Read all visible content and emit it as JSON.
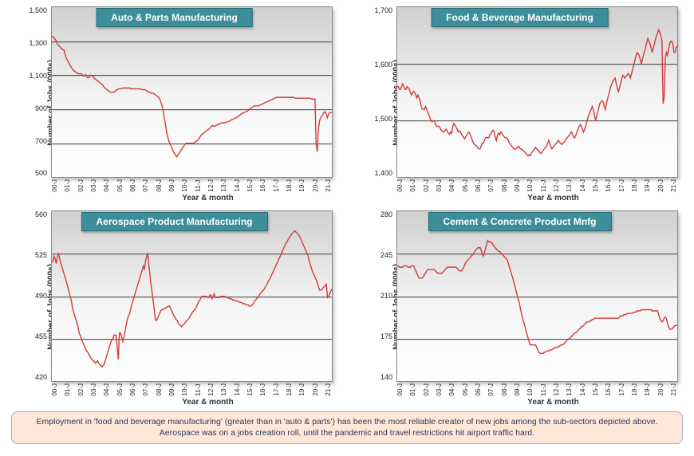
{
  "layout": {
    "rows": 2,
    "cols": 2
  },
  "common": {
    "ylabel": "Number of Jobs (000s)",
    "xlabel": "Year & month",
    "xticks": [
      "00-J",
      "01-J",
      "02-J",
      "03-J",
      "04-J",
      "05-J",
      "06-J",
      "07-J",
      "08-J",
      "09-J",
      "10-J",
      "11-J",
      "12-J",
      "13-J",
      "14-J",
      "15-J",
      "16-J",
      "17-J",
      "18-J",
      "19-J",
      "20-J",
      "21-J"
    ],
    "line_color": "#d43a3a",
    "line_width": 1.4,
    "grid_color": "#555555",
    "plot_bg_top": "#d0d0d0",
    "plot_bg_bottom": "#ffffff",
    "title_bg": "#3c8e9b",
    "title_fg": "#ffffff",
    "title_fontsize": 12,
    "axis_label_fontsize": 10,
    "tick_fontsize": 9
  },
  "caption": "Employment in 'food and beverage manufacturing' (greater than in 'auto & parts') has been the most reliable creator of new jobs among the sub-sectors depicted above. Aerospace was on a jobs creation roll, until the pandemic and travel restrictions hit airport traffic hard.",
  "caption_bg": "#ffe7d9",
  "charts": [
    {
      "title": "Auto & Parts Manufacturing",
      "ylim": [
        500,
        1500
      ],
      "ytick_step": 200,
      "yticks": [
        "1,500",
        "1,300",
        "1,100",
        "900",
        "700",
        "500"
      ],
      "series": [
        1330,
        1325,
        1320,
        1310,
        1300,
        1280,
        1275,
        1270,
        1260,
        1255,
        1250,
        1245,
        1215,
        1200,
        1185,
        1175,
        1160,
        1150,
        1140,
        1130,
        1125,
        1120,
        1115,
        1110,
        1108,
        1110,
        1108,
        1105,
        1095,
        1100,
        1105,
        1090,
        1085,
        1085,
        1100,
        1100,
        1095,
        1090,
        1080,
        1075,
        1070,
        1065,
        1060,
        1055,
        1050,
        1045,
        1035,
        1025,
        1020,
        1015,
        1010,
        1005,
        1000,
        1000,
        1000,
        1000,
        1005,
        1010,
        1015,
        1018,
        1020,
        1020,
        1020,
        1025,
        1025,
        1025,
        1025,
        1025,
        1025,
        1025,
        1020,
        1020,
        1020,
        1020,
        1020,
        1020,
        1020,
        1020,
        1020,
        1020,
        1015,
        1015,
        1015,
        1015,
        1010,
        1005,
        1000,
        1000,
        995,
        995,
        995,
        990,
        985,
        980,
        975,
        970,
        960,
        940,
        920,
        890,
        850,
        810,
        770,
        740,
        715,
        700,
        685,
        670,
        650,
        640,
        630,
        620,
        630,
        640,
        650,
        660,
        670,
        680,
        690,
        700,
        700,
        700,
        700,
        700,
        700,
        700,
        700,
        705,
        710,
        715,
        720,
        730,
        740,
        750,
        755,
        760,
        765,
        770,
        775,
        780,
        785,
        790,
        800,
        805,
        800,
        800,
        805,
        808,
        811,
        814,
        817,
        820,
        820,
        820,
        820,
        825,
        825,
        828,
        830,
        835,
        838,
        841,
        844,
        847,
        850,
        855,
        860,
        865,
        870,
        875,
        878,
        881,
        884,
        887,
        890,
        895,
        900,
        905,
        910,
        915,
        920,
        920,
        920,
        920,
        920,
        925,
        928,
        931,
        934,
        937,
        940,
        943,
        946,
        949,
        952,
        955,
        958,
        961,
        964,
        967,
        970,
        970,
        970,
        970,
        970,
        970,
        970,
        970,
        970,
        970,
        970,
        970,
        970,
        970,
        970,
        970,
        965,
        965,
        965,
        965,
        965,
        965,
        965,
        965,
        965,
        965,
        965,
        965,
        965,
        965,
        965,
        960,
        960,
        960,
        960,
        700,
        650,
        780,
        830,
        850,
        860,
        870,
        880,
        885,
        870,
        850,
        870,
        880,
        880,
        880
      ]
    },
    {
      "title": "Food & Beverage Manufacturing",
      "ylim": [
        1400,
        1700
      ],
      "ytick_step": 100,
      "yticks": [
        "1,700",
        "1,600",
        "1,500",
        "1,400"
      ],
      "series": [
        1560,
        1560,
        1555,
        1555,
        1560,
        1565,
        1560,
        1555,
        1555,
        1560,
        1558,
        1555,
        1550,
        1545,
        1548,
        1552,
        1550,
        1545,
        1540,
        1545,
        1540,
        1535,
        1525,
        1520,
        1520,
        1520,
        1525,
        1520,
        1515,
        1510,
        1505,
        1500,
        1498,
        1500,
        1500,
        1495,
        1490,
        1490,
        1490,
        1488,
        1485,
        1482,
        1480,
        1480,
        1483,
        1485,
        1480,
        1478,
        1476,
        1480,
        1478,
        1490,
        1495,
        1492,
        1488,
        1485,
        1480,
        1482,
        1480,
        1476,
        1473,
        1470,
        1468,
        1472,
        1475,
        1478,
        1480,
        1475,
        1470,
        1465,
        1460,
        1458,
        1456,
        1455,
        1452,
        1450,
        1450,
        1455,
        1460,
        1460,
        1465,
        1470,
        1470,
        1470,
        1470,
        1475,
        1478,
        1480,
        1483,
        1480,
        1470,
        1465,
        1475,
        1478,
        1475,
        1480,
        1478,
        1475,
        1472,
        1470,
        1470,
        1468,
        1465,
        1460,
        1458,
        1455,
        1453,
        1450,
        1450,
        1450,
        1452,
        1455,
        1453,
        1450,
        1450,
        1448,
        1446,
        1445,
        1442,
        1440,
        1438,
        1440,
        1438,
        1442,
        1445,
        1448,
        1450,
        1453,
        1450,
        1448,
        1446,
        1444,
        1442,
        1445,
        1448,
        1450,
        1453,
        1455,
        1460,
        1465,
        1460,
        1455,
        1450,
        1453,
        1455,
        1458,
        1460,
        1463,
        1465,
        1462,
        1460,
        1458,
        1460,
        1462,
        1465,
        1468,
        1470,
        1472,
        1475,
        1478,
        1480,
        1475,
        1470,
        1470,
        1475,
        1480,
        1485,
        1490,
        1493,
        1490,
        1485,
        1480,
        1485,
        1490,
        1498,
        1505,
        1510,
        1515,
        1520,
        1525,
        1520,
        1510,
        1500,
        1508,
        1515,
        1523,
        1530,
        1533,
        1535,
        1533,
        1525,
        1520,
        1530,
        1538,
        1545,
        1553,
        1560,
        1565,
        1570,
        1573,
        1575,
        1565,
        1558,
        1550,
        1558,
        1565,
        1573,
        1580,
        1578,
        1575,
        1578,
        1580,
        1583,
        1580,
        1575,
        1583,
        1590,
        1598,
        1605,
        1613,
        1620,
        1618,
        1615,
        1608,
        1600,
        1608,
        1615,
        1623,
        1630,
        1638,
        1645,
        1640,
        1635,
        1628,
        1620,
        1628,
        1635,
        1643,
        1650,
        1655,
        1660,
        1655,
        1650,
        1640,
        1530,
        1540,
        1610,
        1620,
        1615,
        1625,
        1635,
        1640,
        1640,
        1635,
        1620,
        1620,
        1630,
        1630
      ]
    },
    {
      "title": "Aerospace Product Manufacturing",
      "ylim": [
        420,
        560
      ],
      "ytick_step": 35,
      "yticks": [
        "560",
        "525",
        "490",
        "455",
        "420"
      ],
      "series": [
        518,
        519,
        523,
        521,
        517,
        522,
        525,
        522,
        518,
        515,
        512,
        509,
        506,
        503,
        500,
        496,
        493,
        489,
        486,
        480,
        477,
        474,
        471,
        468,
        465,
        460,
        458,
        455,
        453,
        451,
        449,
        447,
        445,
        444,
        442,
        441,
        439,
        438,
        437,
        436,
        435,
        436,
        437,
        435,
        434,
        433,
        432,
        433,
        434,
        437,
        440,
        443,
        446,
        449,
        452,
        454,
        455,
        458,
        458,
        458,
        448,
        438,
        460,
        460,
        457,
        453,
        455,
        460,
        465,
        470,
        473,
        475,
        478,
        482,
        485,
        488,
        491,
        494,
        497,
        500,
        503,
        506,
        509,
        512,
        515,
        512,
        519,
        523,
        525,
        516,
        508,
        500,
        493,
        486,
        479,
        471,
        470,
        472,
        474,
        476,
        478,
        479,
        479,
        480,
        480,
        481,
        481,
        482,
        482,
        480,
        478,
        476,
        474,
        473,
        471,
        470,
        468,
        467,
        466,
        465,
        466,
        467,
        468,
        469,
        470,
        471,
        472,
        474,
        475,
        477,
        478,
        479,
        480,
        482,
        484,
        486,
        487,
        489,
        490,
        490,
        490,
        490,
        490,
        489,
        489,
        491,
        491,
        488,
        490,
        492,
        489,
        489,
        489,
        489,
        489,
        490,
        490,
        490,
        490,
        490,
        489,
        489,
        489,
        488,
        488,
        488,
        487,
        487,
        487,
        486,
        486,
        486,
        485,
        485,
        485,
        484,
        484,
        484,
        483,
        483,
        483,
        482,
        482,
        482,
        483,
        484,
        486,
        487,
        488,
        489,
        490,
        492,
        493,
        494,
        495,
        496,
        498,
        499,
        501,
        503,
        504,
        506,
        508,
        510,
        512,
        514,
        516,
        518,
        520,
        522,
        524,
        526,
        528,
        530,
        532,
        534,
        535,
        537,
        538,
        540,
        541,
        542,
        543,
        544,
        543,
        542,
        541,
        540,
        538,
        536,
        534,
        532,
        530,
        528,
        526,
        524,
        520,
        517,
        514,
        511,
        509,
        507,
        505,
        503,
        500,
        497,
        495,
        495,
        496,
        497,
        498,
        499,
        500,
        489,
        490,
        492,
        494,
        496
      ]
    },
    {
      "title": "Cement & Concrete Product Mnfg",
      "ylim": [
        140,
        280
      ],
      "ytick_step": 35,
      "yticks": [
        "280",
        "245",
        "210",
        "175",
        "140"
      ],
      "series": [
        235,
        235,
        234,
        234,
        234,
        234,
        235,
        235,
        235,
        235,
        234,
        234,
        234,
        235,
        235,
        235,
        233,
        231,
        229,
        227,
        225,
        225,
        225,
        225,
        226,
        228,
        229,
        231,
        232,
        232,
        232,
        232,
        232,
        232,
        232,
        231,
        230,
        229,
        229,
        229,
        229,
        229,
        230,
        231,
        232,
        233,
        234,
        234,
        234,
        234,
        234,
        234,
        234,
        234,
        234,
        233,
        232,
        231,
        231,
        231,
        232,
        234,
        236,
        238,
        239,
        240,
        241,
        242,
        243,
        244,
        245,
        247,
        248,
        249,
        250,
        250,
        250,
        248,
        245,
        243,
        246,
        249,
        253,
        256,
        255,
        255,
        254,
        254,
        252,
        251,
        250,
        249,
        248,
        247,
        247,
        246,
        245,
        244,
        243,
        242,
        241,
        240,
        237,
        234,
        231,
        228,
        225,
        222,
        218,
        215,
        211,
        208,
        205,
        200,
        196,
        192,
        189,
        186,
        182,
        179,
        176,
        173,
        170,
        170,
        170,
        170,
        170,
        170,
        168,
        166,
        164,
        163,
        163,
        163,
        163,
        164,
        164,
        165,
        165,
        165,
        166,
        166,
        166,
        167,
        167,
        168,
        168,
        168,
        169,
        169,
        170,
        170,
        170,
        171,
        172,
        173,
        174,
        175,
        175,
        176,
        177,
        178,
        179,
        180,
        180,
        181,
        182,
        183,
        184,
        185,
        185,
        186,
        187,
        188,
        189,
        189,
        189,
        190,
        190,
        191,
        191,
        192,
        192,
        192,
        192,
        192,
        192,
        192,
        192,
        192,
        192,
        192,
        192,
        192,
        192,
        192,
        192,
        192,
        192,
        192,
        192,
        192,
        192,
        192,
        193,
        194,
        194,
        194,
        195,
        195,
        195,
        196,
        196,
        196,
        196,
        196,
        196,
        197,
        197,
        197,
        198,
        198,
        198,
        198,
        199,
        199,
        199,
        199,
        199,
        199,
        199,
        199,
        199,
        199,
        198,
        198,
        198,
        198,
        198,
        198,
        195,
        192,
        190,
        189,
        190,
        192,
        193,
        192,
        188,
        185,
        183,
        183,
        183,
        184,
        185,
        186,
        186,
        186
      ]
    }
  ]
}
